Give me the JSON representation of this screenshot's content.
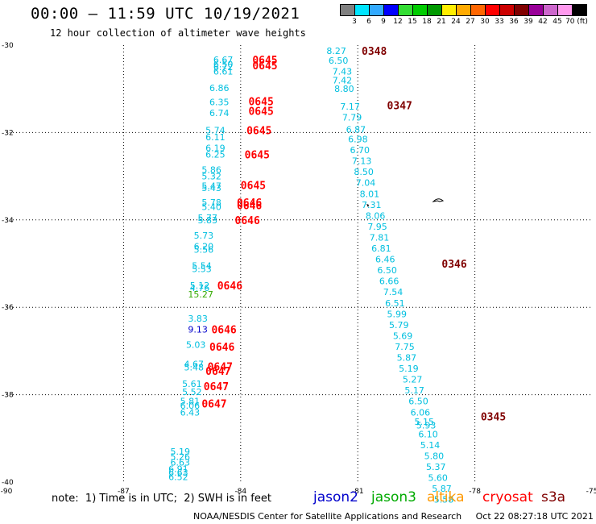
{
  "title": "00:00 – 11:59 UTC 10/19/2021",
  "subtitle": "12 hour collection of altimeter wave heights",
  "legend": {
    "labels": [
      "3",
      "6",
      "9",
      "12",
      "15",
      "18",
      "21",
      "24",
      "27",
      "30",
      "33",
      "36",
      "39",
      "42",
      "45",
      "70 (ft)"
    ],
    "colors": [
      "#808080",
      "#00e5ff",
      "#33aaff",
      "#0000ff",
      "#33dd33",
      "#00cc00",
      "#009900",
      "#ffee00",
      "#ffaa00",
      "#ff6600",
      "#ff0000",
      "#cc0000",
      "#800000",
      "#990099",
      "#cc66cc",
      "#ff99ee",
      "#000000"
    ]
  },
  "axes": {
    "x_ticks": [
      "-90",
      "-87",
      "-84",
      "-81",
      "-78",
      "-75"
    ],
    "y_ticks": [
      "-30",
      "-32",
      "-34",
      "-36",
      "-38",
      "-40"
    ],
    "lon_range": [
      -90,
      -75
    ],
    "lat_range": [
      -40,
      -30
    ]
  },
  "colors": {
    "cyan": "#00bfdf",
    "red": "#ff0000",
    "darkred": "#800000",
    "blue": "#0000cc",
    "green": "#33aa00",
    "orange": "#ff9900"
  },
  "tracks": [
    {
      "satellite": "cryosat",
      "color": "#ff0000",
      "pass_labels": [
        {
          "text": "0645",
          "lon": -83.7,
          "lat": -30.33
        },
        {
          "text": "0645",
          "lon": -83.7,
          "lat": -30.46
        },
        {
          "text": "0645",
          "lon": -83.8,
          "lat": -31.28
        },
        {
          "text": "0645",
          "lon": -83.8,
          "lat": -31.5
        },
        {
          "text": "0645",
          "lon": -83.85,
          "lat": -31.95
        },
        {
          "text": "0645",
          "lon": -83.9,
          "lat": -32.5
        },
        {
          "text": "0645",
          "lon": -84.0,
          "lat": -33.2
        },
        {
          "text": "0646",
          "lon": -84.1,
          "lat": -33.6
        },
        {
          "text": "0646",
          "lon": -84.1,
          "lat": -33.66
        },
        {
          "text": "0646",
          "lon": -84.15,
          "lat": -34.0
        },
        {
          "text": "0646",
          "lon": -84.6,
          "lat": -35.5
        },
        {
          "text": "0646",
          "lon": -84.75,
          "lat": -36.5
        },
        {
          "text": "0646",
          "lon": -84.8,
          "lat": -36.9
        },
        {
          "text": "0647",
          "lon": -84.85,
          "lat": -37.35
        },
        {
          "text": "0647",
          "lon": -84.9,
          "lat": -37.45
        },
        {
          "text": "0647",
          "lon": -84.95,
          "lat": -37.8
        },
        {
          "text": "0647",
          "lon": -85.0,
          "lat": -38.2
        }
      ],
      "values": [
        {
          "v": "6.67",
          "lon": -84.7,
          "lat": -30.33,
          "c": "#00bfdf"
        },
        {
          "v": "6.50",
          "lon": -84.7,
          "lat": -30.43,
          "c": "#00bfdf"
        },
        {
          "v": "6.72",
          "lon": -84.7,
          "lat": -30.5,
          "c": "#00bfdf"
        },
        {
          "v": "6.61",
          "lon": -84.7,
          "lat": -30.6,
          "c": "#00bfdf"
        },
        {
          "v": "6.86",
          "lon": -84.8,
          "lat": -30.98,
          "c": "#00bfdf"
        },
        {
          "v": "6.35",
          "lon": -84.8,
          "lat": -31.3,
          "c": "#00bfdf"
        },
        {
          "v": "6.74",
          "lon": -84.8,
          "lat": -31.55,
          "c": "#00bfdf"
        },
        {
          "v": "5.74",
          "lon": -84.9,
          "lat": -31.95,
          "c": "#00bfdf"
        },
        {
          "v": "6.11",
          "lon": -84.9,
          "lat": -32.1,
          "c": "#00bfdf"
        },
        {
          "v": "6.19",
          "lon": -84.9,
          "lat": -32.35,
          "c": "#00bfdf"
        },
        {
          "v": "6.25",
          "lon": -84.9,
          "lat": -32.5,
          "c": "#00bfdf"
        },
        {
          "v": "5.86",
          "lon": -85.0,
          "lat": -32.85,
          "c": "#00bfdf"
        },
        {
          "v": "5.32",
          "lon": -85.0,
          "lat": -33.0,
          "c": "#00bfdf"
        },
        {
          "v": "5.47",
          "lon": -85.0,
          "lat": -33.22,
          "c": "#00bfdf"
        },
        {
          "v": "5.43",
          "lon": -85.0,
          "lat": -33.27,
          "c": "#00bfdf"
        },
        {
          "v": "5.78",
          "lon": -85.0,
          "lat": -33.6,
          "c": "#00bfdf"
        },
        {
          "v": "5.40",
          "lon": -85.0,
          "lat": -33.7,
          "c": "#00bfdf"
        },
        {
          "v": "5.77",
          "lon": -85.1,
          "lat": -33.95,
          "c": "#00bfdf"
        },
        {
          "v": "5.83",
          "lon": -85.1,
          "lat": -34.0,
          "c": "#00bfdf"
        },
        {
          "v": "5.73",
          "lon": -85.2,
          "lat": -34.35,
          "c": "#00bfdf"
        },
        {
          "v": "6.20",
          "lon": -85.2,
          "lat": -34.6,
          "c": "#00bfdf"
        },
        {
          "v": "5.56",
          "lon": -85.2,
          "lat": -34.68,
          "c": "#00bfdf"
        },
        {
          "v": "5.54",
          "lon": -85.25,
          "lat": -35.05,
          "c": "#00bfdf"
        },
        {
          "v": "5.53",
          "lon": -85.25,
          "lat": -35.12,
          "c": "#00bfdf"
        },
        {
          "v": "5.12",
          "lon": -85.3,
          "lat": -35.5,
          "c": "#00bfdf"
        },
        {
          "v": "4.76",
          "lon": -85.3,
          "lat": -35.55,
          "c": "#00bfdf"
        },
        {
          "v": "15.27",
          "lon": -85.35,
          "lat": -35.7,
          "c": "#33aa00"
        },
        {
          "v": "3.83",
          "lon": -85.35,
          "lat": -36.25,
          "c": "#00bfdf"
        },
        {
          "v": "9.13",
          "lon": -85.35,
          "lat": -36.5,
          "c": "#0000cc"
        },
        {
          "v": "5.03",
          "lon": -85.4,
          "lat": -36.85,
          "c": "#00bfdf"
        },
        {
          "v": "4.67",
          "lon": -85.45,
          "lat": -37.3,
          "c": "#00bfdf"
        },
        {
          "v": "5.48",
          "lon": -85.45,
          "lat": -37.37,
          "c": "#00bfdf"
        },
        {
          "v": "5.61",
          "lon": -85.5,
          "lat": -37.75,
          "c": "#00bfdf"
        },
        {
          "v": "5.52",
          "lon": -85.5,
          "lat": -37.93,
          "c": "#00bfdf"
        },
        {
          "v": "5.81",
          "lon": -85.55,
          "lat": -38.15,
          "c": "#00bfdf"
        },
        {
          "v": "6.06",
          "lon": -85.55,
          "lat": -38.25,
          "c": "#00bfdf"
        },
        {
          "v": "6.43",
          "lon": -85.55,
          "lat": -38.4,
          "c": "#00bfdf"
        },
        {
          "v": "5.19",
          "lon": -85.8,
          "lat": -39.3,
          "c": "#00bfdf"
        },
        {
          "v": "5.26",
          "lon": -85.8,
          "lat": -39.42,
          "c": "#00bfdf"
        },
        {
          "v": "6.63",
          "lon": -85.8,
          "lat": -39.55,
          "c": "#00bfdf"
        },
        {
          "v": "6.91",
          "lon": -85.85,
          "lat": -39.7,
          "c": "#00bfdf"
        },
        {
          "v": "6.63",
          "lon": -85.85,
          "lat": -39.78,
          "c": "#00bfdf"
        },
        {
          "v": "6.52",
          "lon": -85.85,
          "lat": -39.88,
          "c": "#00bfdf"
        }
      ]
    },
    {
      "satellite": "s3a",
      "color": "#800000",
      "pass_labels": [
        {
          "text": "0348",
          "lon": -80.9,
          "lat": -30.13
        },
        {
          "text": "0347",
          "lon": -80.25,
          "lat": -31.37
        },
        {
          "text": "0346",
          "lon": -78.85,
          "lat": -35.0
        },
        {
          "text": "0345",
          "lon": -77.85,
          "lat": -38.5
        }
      ],
      "values": [
        {
          "v": "8.27",
          "lon": -81.8,
          "lat": -30.13,
          "c": "#00bfdf"
        },
        {
          "v": "6.50",
          "lon": -81.75,
          "lat": -30.35,
          "c": "#00bfdf"
        },
        {
          "v": "7.43",
          "lon": -81.65,
          "lat": -30.6,
          "c": "#00bfdf"
        },
        {
          "v": "7.42",
          "lon": -81.65,
          "lat": -30.8,
          "c": "#00bfdf"
        },
        {
          "v": "8.80",
          "lon": -81.6,
          "lat": -31.0,
          "c": "#00bfdf"
        },
        {
          "v": "7.17",
          "lon": -81.45,
          "lat": -31.4,
          "c": "#00bfdf"
        },
        {
          "v": "7.79",
          "lon": -81.4,
          "lat": -31.65,
          "c": "#00bfdf"
        },
        {
          "v": "6.87",
          "lon": -81.3,
          "lat": -31.93,
          "c": "#00bfdf"
        },
        {
          "v": "6.98",
          "lon": -81.25,
          "lat": -32.15,
          "c": "#00bfdf"
        },
        {
          "v": "6.70",
          "lon": -81.2,
          "lat": -32.4,
          "c": "#00bfdf"
        },
        {
          "v": "7.13",
          "lon": -81.15,
          "lat": -32.65,
          "c": "#00bfdf"
        },
        {
          "v": "8.50",
          "lon": -81.1,
          "lat": -32.9,
          "c": "#00bfdf"
        },
        {
          "v": "7.04",
          "lon": -81.05,
          "lat": -33.15,
          "c": "#00bfdf"
        },
        {
          "v": "8.01",
          "lon": -80.95,
          "lat": -33.4,
          "c": "#00bfdf"
        },
        {
          "v": "7.31",
          "lon": -80.9,
          "lat": -33.65,
          "c": "#00bfdf"
        },
        {
          "v": "8.06",
          "lon": -80.8,
          "lat": -33.9,
          "c": "#00bfdf"
        },
        {
          "v": "7.95",
          "lon": -80.75,
          "lat": -34.15,
          "c": "#00bfdf"
        },
        {
          "v": "7.81",
          "lon": -80.7,
          "lat": -34.4,
          "c": "#00bfdf"
        },
        {
          "v": "6.81",
          "lon": -80.65,
          "lat": -34.65,
          "c": "#00bfdf"
        },
        {
          "v": "6.46",
          "lon": -80.55,
          "lat": -34.9,
          "c": "#00bfdf"
        },
        {
          "v": "6.50",
          "lon": -80.5,
          "lat": -35.15,
          "c": "#00bfdf"
        },
        {
          "v": "6.66",
          "lon": -80.45,
          "lat": -35.4,
          "c": "#00bfdf"
        },
        {
          "v": "7.54",
          "lon": -80.35,
          "lat": -35.65,
          "c": "#00bfdf"
        },
        {
          "v": "6.51",
          "lon": -80.3,
          "lat": -35.9,
          "c": "#00bfdf"
        },
        {
          "v": "5.99",
          "lon": -80.25,
          "lat": -36.15,
          "c": "#00bfdf"
        },
        {
          "v": "5.79",
          "lon": -80.2,
          "lat": -36.4,
          "c": "#00bfdf"
        },
        {
          "v": "5.69",
          "lon": -80.1,
          "lat": -36.65,
          "c": "#00bfdf"
        },
        {
          "v": "7.75",
          "lon": -80.05,
          "lat": -36.9,
          "c": "#00bfdf"
        },
        {
          "v": "5.87",
          "lon": -80.0,
          "lat": -37.15,
          "c": "#00bfdf"
        },
        {
          "v": "5.19",
          "lon": -79.95,
          "lat": -37.4,
          "c": "#00bfdf"
        },
        {
          "v": "5.27",
          "lon": -79.85,
          "lat": -37.65,
          "c": "#00bfdf"
        },
        {
          "v": "5.17",
          "lon": -79.8,
          "lat": -37.9,
          "c": "#00bfdf"
        },
        {
          "v": "6.50",
          "lon": -79.7,
          "lat": -38.15,
          "c": "#00bfdf"
        },
        {
          "v": "6.06",
          "lon": -79.65,
          "lat": -38.4,
          "c": "#00bfdf"
        },
        {
          "v": "5.15",
          "lon": -79.55,
          "lat": -38.62,
          "c": "#00bfdf"
        },
        {
          "v": "5.93",
          "lon": -79.5,
          "lat": -38.7,
          "c": "#00bfdf"
        },
        {
          "v": "6.10",
          "lon": -79.45,
          "lat": -38.9,
          "c": "#00bfdf"
        },
        {
          "v": "5.14",
          "lon": -79.4,
          "lat": -39.15,
          "c": "#00bfdf"
        },
        {
          "v": "5.80",
          "lon": -79.3,
          "lat": -39.4,
          "c": "#00bfdf"
        },
        {
          "v": "5.37",
          "lon": -79.25,
          "lat": -39.65,
          "c": "#00bfdf"
        },
        {
          "v": "5.60",
          "lon": -79.2,
          "lat": -39.9,
          "c": "#00bfdf"
        },
        {
          "v": "5.87",
          "lon": -79.1,
          "lat": -40.15,
          "c": "#00bfdf"
        },
        {
          "v": "5.58",
          "lon": -79.05,
          "lat": -40.4,
          "c": "#00bfdf"
        }
      ]
    }
  ],
  "note": "note:  1) Time is in UTC;  2) SWH is in feet",
  "satellites": [
    {
      "name": "jason2",
      "color": "#0000cc"
    },
    {
      "name": "jason3",
      "color": "#00aa00"
    },
    {
      "name": "altika",
      "color": "#ff9900"
    },
    {
      "name": "cryosat",
      "color": "#ff0000"
    },
    {
      "name": "s3a",
      "color": "#800000"
    }
  ],
  "credit": "NOAA/NESDIS Center for Satellite Applications and Research     Oct 22 08:27:18 UTC 2021"
}
